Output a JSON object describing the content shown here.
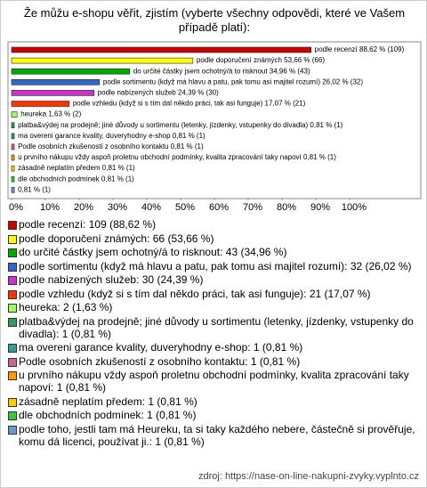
{
  "chart_data": {
    "type": "bar",
    "orientation": "horizontal",
    "title": "Že můžu e-shopu věřit, zjistím (vyberte všechny odpovědi, které ve Vašem případě platí):",
    "values": [
      88.62,
      53.66,
      34.96,
      26.02,
      24.39,
      17.07,
      1.63,
      0.81,
      0.81,
      0.81,
      0.81,
      0.81,
      0.81,
      0.81
    ],
    "value_labels": [
      "podle recenzí 88,62 % (109)",
      "podle doporučení známých 53,66 % (66)",
      "do určité částky jsem ochotný/á to risknout 34,96 % (43)",
      "podle sortimentu (když má hlavu a patu, pak tomu asi majitel rozumí) 26,02 % (32)",
      "podle nabízených služeb 24,39 % (30)",
      "podle vzhledu (když si s tím dal někdo práci, tak asi funguje) 17,07 % (21)",
      "heureka 1,63 % (2)",
      "platba&výdej na prodejně; jiné důvody u sortimentu (letenky, jízdenky, vstupenky do divadla) 0,81 % (1)",
      "ma overeni garance kvality, duveryhodny e-shop 0,81 % (1)",
      "Podle osobních zkušeností z osobního kontaktu 0,81 % (1)",
      "u prvního nákupu vždy aspoň proletnu obchodní podmínky, kvalita zpracování taky napoví 0,81 % (1)",
      "zásadně neplatím předem 0,81 % (1)",
      "dle obchodních podmínek 0,81 % (1)",
      "0,81 % (1)"
    ],
    "legend_labels": [
      "podle recenzí: 109 (88,62 %)",
      "podle doporučení známých: 66 (53,66 %)",
      "do určité částky jsem ochotný/á to risknout: 43 (34,96 %)",
      "podle sortimentu (když má hlavu a patu, pak tomu asi majitel rozumí): 32 (26,02 %)",
      "podle nabízených služeb: 30 (24,39 %)",
      "podle vzhledu (když si s tím dal někdo práci, tak asi funguje): 21 (17,07 %)",
      "heureka: 2 (1,63 %)",
      "platba&výdej na prodejně; jiné důvody u sortimentu (letenky, jízdenky, vstupenky do divadla): 1 (0,81 %)",
      "ma overeni garance kvality, duveryhodny e-shop: 1 (0,81 %)",
      "Podle osobních zkušeností z osobního kontaktu: 1 (0,81 %)",
      "u prvního nákupu vždy aspoň proletnu obchodní podmínky, kvalita zpracování taky napoví: 1 (0,81 %)",
      "zásadně neplatím předem: 1 (0,81 %)",
      "dle obchodních podmínek: 1 (0,81 %)",
      "podle toho, jestli tam má Heureku, ta si taky každého nebere, částečně si prověřuje, komu dá licenci, používat ji.: 1 (0,81 %)"
    ],
    "colors": [
      "#cc0000",
      "#ffff00",
      "#00aa00",
      "#3366cc",
      "#cc33cc",
      "#ff3300",
      "#99ff66",
      "#339966",
      "#339999",
      "#cc6699",
      "#ff9900",
      "#ffcc00",
      "#33cc33",
      "#6699cc"
    ],
    "xlim": [
      0,
      100
    ],
    "xticks": [
      {
        "value": 0,
        "label": "0%"
      },
      {
        "value": 10,
        "label": "10%"
      },
      {
        "value": 20,
        "label": "20%"
      },
      {
        "value": 30,
        "label": "30%"
      },
      {
        "value": 40,
        "label": "40%"
      },
      {
        "value": 50,
        "label": "50%"
      },
      {
        "value": 60,
        "label": "60%"
      },
      {
        "value": 70,
        "label": "70%"
      },
      {
        "value": 80,
        "label": "80%"
      },
      {
        "value": 90,
        "label": "90%"
      },
      {
        "value": 100,
        "label": "100%"
      }
    ],
    "source": "zdroj: https://nase-on-line-nakupni-zvyky.vyplnto.cz"
  }
}
